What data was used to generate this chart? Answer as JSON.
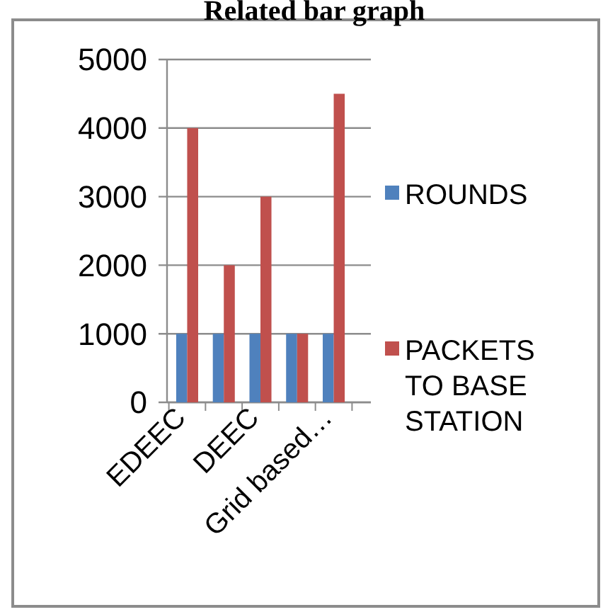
{
  "chart_data": {
    "type": "bar",
    "title": "Related bar graph",
    "categories": [
      "EDEEC",
      null,
      "DEEC",
      null,
      "Grid based…"
    ],
    "series": [
      {
        "name": "ROUNDS",
        "color": "#4f81bd",
        "values": [
          1000,
          1000,
          1000,
          1000,
          1000
        ]
      },
      {
        "name": "PACKETS TO BASE STATION",
        "color": "#c0504d",
        "values": [
          4000,
          2000,
          3000,
          1000,
          4500
        ]
      }
    ],
    "ylim": [
      0,
      5000
    ],
    "yticks": [
      0,
      1000,
      2000,
      3000,
      4000,
      5000
    ],
    "grid": "y",
    "legend": "right"
  }
}
